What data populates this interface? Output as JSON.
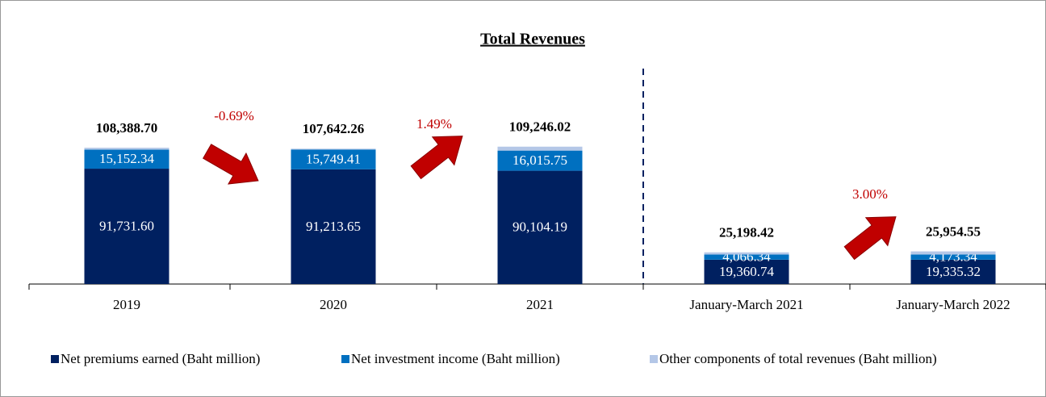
{
  "chart_data": {
    "type": "stacked-bar",
    "title": "Total Revenues",
    "categories": [
      "2019",
      "2020",
      "2021",
      "January-March 2021",
      "January-March 2022"
    ],
    "series": [
      {
        "name": "Net premiums earned (Baht million)",
        "color": "#002060",
        "values": [
          91731.6,
          91213.65,
          90104.19,
          19360.74,
          19335.32
        ],
        "value_labels": [
          "91,731.60",
          "91,213.65",
          "90,104.19",
          "19,360.74",
          "19,335.32"
        ]
      },
      {
        "name": "Net investment income (Baht million)",
        "color": "#0070c0",
        "values": [
          15152.34,
          15749.41,
          16015.75,
          4066.34,
          4173.34
        ],
        "value_labels": [
          "15,152.34",
          "15,749.41",
          "16,015.75",
          "4,066.34",
          "4,173.34"
        ]
      },
      {
        "name": "Other components of total revenues (Baht million)",
        "color": "#b4c7e7",
        "values": [
          1504.76,
          679.2,
          3126.08,
          1771.34,
          2445.89
        ]
      }
    ],
    "totals": [
      108388.7,
      107642.26,
      109246.02,
      25198.42,
      25954.55
    ],
    "total_labels": [
      "108,388.70",
      "107,642.26",
      "109,246.02",
      "25,198.42",
      "25,954.55"
    ],
    "annotations": [
      {
        "text": "-0.69%",
        "value": -0.69
      },
      {
        "text": "1.49%",
        "value": 1.49
      },
      {
        "text": "3.00%",
        "value": 3.0
      }
    ],
    "ylim": [
      0,
      120000
    ]
  }
}
